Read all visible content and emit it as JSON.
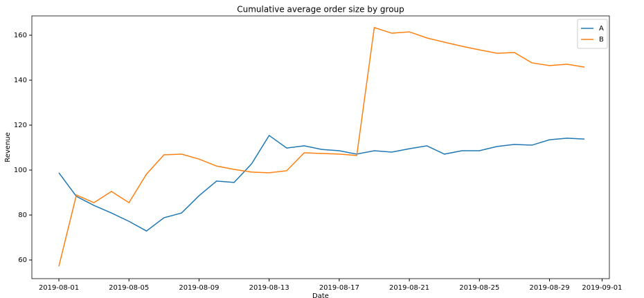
{
  "chart_data": {
    "type": "line",
    "title": "Cumulative average order size by group",
    "x_label": "Date",
    "y_label": "Revenue",
    "x": [
      "2019-08-01",
      "2019-08-02",
      "2019-08-03",
      "2019-08-04",
      "2019-08-05",
      "2019-08-06",
      "2019-08-07",
      "2019-08-08",
      "2019-08-09",
      "2019-08-10",
      "2019-08-11",
      "2019-08-12",
      "2019-08-13",
      "2019-08-14",
      "2019-08-15",
      "2019-08-16",
      "2019-08-17",
      "2019-08-18",
      "2019-08-19",
      "2019-08-20",
      "2019-08-21",
      "2019-08-22",
      "2019-08-23",
      "2019-08-24",
      "2019-08-25",
      "2019-08-26",
      "2019-08-27",
      "2019-08-28",
      "2019-08-29",
      "2019-08-30",
      "2019-08-31"
    ],
    "series": [
      {
        "name": "A",
        "color": "#1f77b4",
        "values": [
          98.8,
          88.3,
          84.3,
          80.9,
          77.2,
          72.9,
          78.8,
          80.9,
          88.6,
          95.1,
          94.5,
          102.8,
          115.4,
          109.8,
          110.8,
          109.2,
          108.6,
          107.1,
          108.6,
          108.0,
          109.5,
          110.8,
          107.1,
          108.6,
          108.6,
          110.5,
          111.4,
          111.1,
          113.5,
          114.2,
          113.8
        ]
      },
      {
        "name": "B",
        "color": "#ff7f0e",
        "values": [
          57.2,
          88.9,
          85.5,
          90.5,
          85.5,
          98.2,
          106.8,
          107.1,
          104.9,
          101.8,
          100.3,
          99.1,
          98.8,
          99.7,
          107.7,
          107.4,
          107.1,
          106.5,
          163.4,
          160.9,
          161.5,
          158.8,
          156.9,
          155.1,
          153.5,
          152.0,
          152.3,
          147.7,
          146.5,
          147.1,
          145.8
        ]
      }
    ],
    "xlim": [
      "2019-07-30T11:00",
      "2019-09-01T10:00"
    ],
    "xticks": [
      "2019-08-01",
      "2019-08-05",
      "2019-08-09",
      "2019-08-13",
      "2019-08-17",
      "2019-08-21",
      "2019-08-25",
      "2019-08-29",
      "2019-09-01"
    ],
    "ylim": [
      51.7,
      168.6
    ],
    "yticks": [
      60,
      80,
      100,
      120,
      140,
      160
    ],
    "legend": "upper right"
  }
}
